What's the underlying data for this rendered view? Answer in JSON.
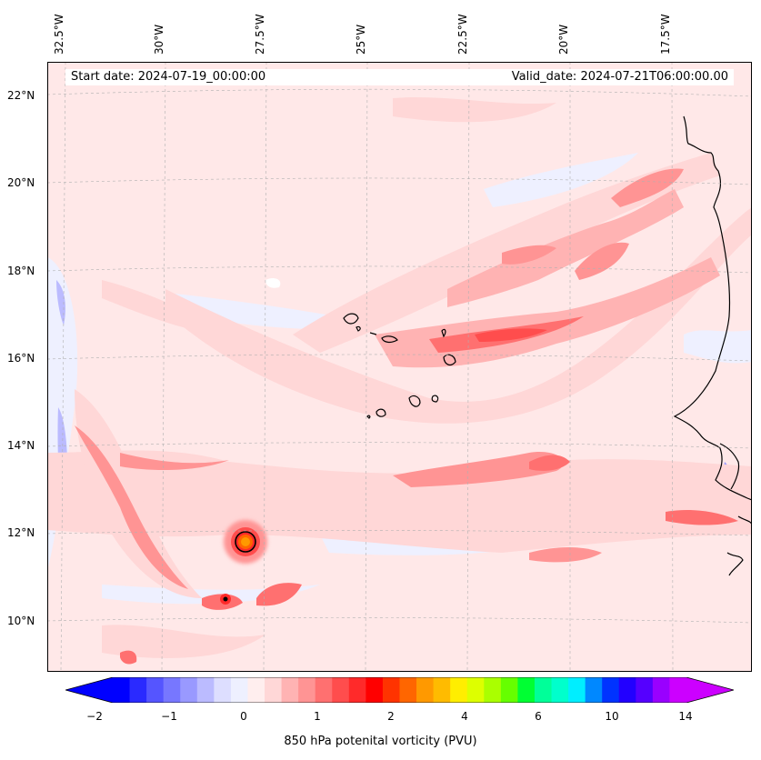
{
  "map": {
    "start_date": "Start date: 2024-07-19_00:00:00",
    "valid_date": "Valid_date: 2024-07-21T06:00:00.00",
    "variable_label": "850 hPa potenital vorticity (PVU)",
    "longitude_labels": [
      "32.5°W",
      "30°W",
      "27.5°W",
      "25°W",
      "22.5°W",
      "20°W",
      "17.5°W"
    ],
    "latitude_labels": [
      "22°N",
      "20°N",
      "18°N",
      "16°N",
      "14°N",
      "12°N",
      "10°N"
    ],
    "region": "Eastern tropical Atlantic, Cape Verde Islands and West African coast"
  },
  "colorbar": {
    "ticks": [
      "−2",
      "−1",
      "0",
      "1",
      "2",
      "4",
      "6",
      "10",
      "14"
    ],
    "colors": [
      "#0000ff",
      "#2a2aff",
      "#5555ff",
      "#7777ff",
      "#9999ff",
      "#bbbbff",
      "#dddeff",
      "#eef0ff",
      "#ffeeee",
      "#ffd7d7",
      "#ffb3b3",
      "#ff9494",
      "#ff7070",
      "#ff4d4d",
      "#ff2a2a",
      "#ff0000",
      "#ff3300",
      "#ff6600",
      "#ff9900",
      "#ffbb00",
      "#ffee00",
      "#ddff00",
      "#aaff00",
      "#66ff00",
      "#00ff33",
      "#00ff99",
      "#00ffcc",
      "#00eeff",
      "#0088ff",
      "#0033ff",
      "#2200ff",
      "#5500ff",
      "#9900ff",
      "#cc00ff"
    ],
    "extend_left_color": "#0000ff",
    "extend_right_color": "#cc00ff"
  }
}
